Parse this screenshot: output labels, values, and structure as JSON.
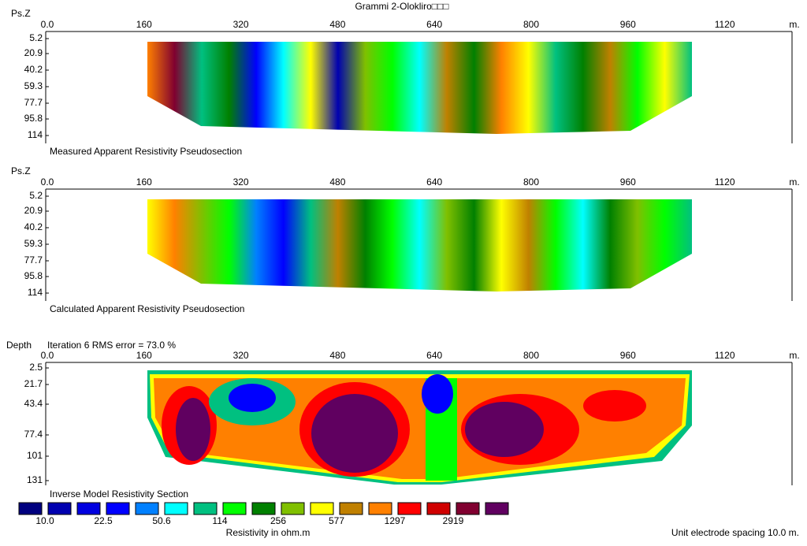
{
  "title": "Grammi 2-Olokliro□□□",
  "panels": [
    {
      "y_axis_label": "Ps.Z",
      "x_ticks": [
        "0.0",
        "160",
        "320",
        "480",
        "640",
        "800",
        "960",
        "1120"
      ],
      "x_unit": "m.",
      "y_ticks": [
        "5.2",
        "20.9",
        "40.2",
        "59.3",
        "77.7",
        "95.8",
        "114"
      ],
      "caption": "Measured Apparent Resistivity Pseudosection"
    },
    {
      "y_axis_label": "Ps.Z",
      "x_ticks": [
        "0.0",
        "160",
        "320",
        "480",
        "640",
        "800",
        "960",
        "1120"
      ],
      "x_unit": "m.",
      "y_ticks": [
        "5.2",
        "20.9",
        "40.2",
        "59.3",
        "77.7",
        "95.8",
        "114"
      ],
      "caption": "Calculated Apparent Resistivity Pseudosection"
    },
    {
      "y_axis_label": "Depth",
      "note": "Iteration 6 RMS error = 73.0 %",
      "x_ticks": [
        "0.0",
        "160",
        "320",
        "480",
        "640",
        "800",
        "960",
        "1120"
      ],
      "x_unit": "m.",
      "y_ticks": [
        "2.5",
        "21.7",
        "43.4",
        "77.4",
        "101",
        "131"
      ],
      "caption": "Inverse Model Resistivity Section"
    }
  ],
  "legend": {
    "colors": [
      "#00007f",
      "#0000b0",
      "#0000e0",
      "#0000ff",
      "#0080ff",
      "#00ffff",
      "#00c080",
      "#00ff00",
      "#008000",
      "#80c000",
      "#ffff00",
      "#c08000",
      "#ff8000",
      "#ff0000",
      "#d00000",
      "#800030",
      "#600060"
    ],
    "labels": [
      "10.0",
      "22.5",
      "50.6",
      "114",
      "256",
      "577",
      "1297",
      "2919"
    ],
    "title": "Resistivity in ohm.m"
  },
  "footer": "Unit electrode spacing 10.0 m."
}
